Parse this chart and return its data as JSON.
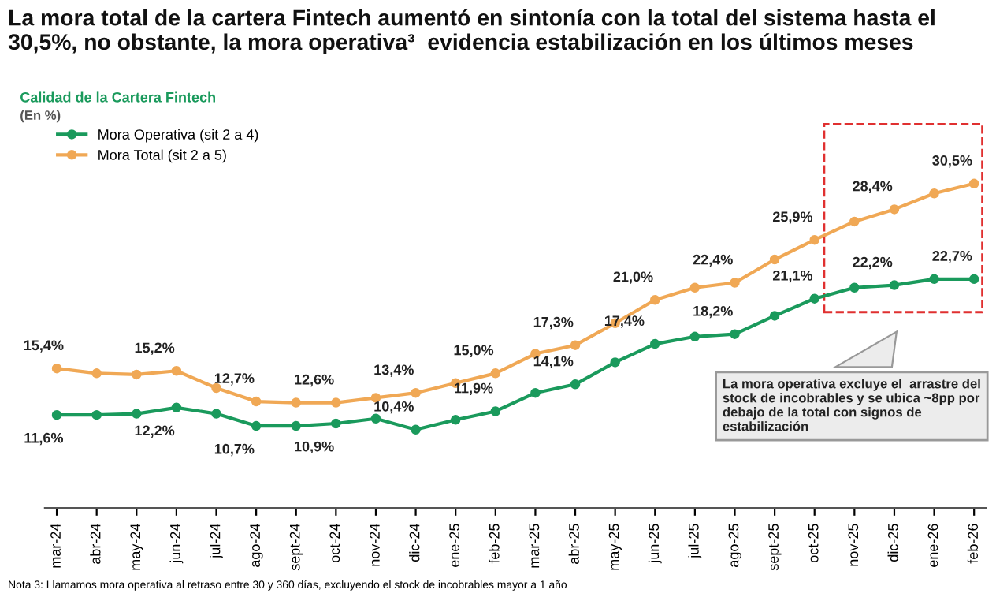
{
  "chart_data": {
    "type": "line",
    "title": "La mora total de la cartera Fintech aumentó en sintonía con la total del sistema hasta el\n30,5%, no obstante, la mora operativa³  evidencia estabilización en los últimos meses",
    "subtitle": "Calidad de la Cartera Fintech",
    "ylabel": "(En %)",
    "categories": [
      "mar-24",
      "abr-24",
      "may-24",
      "jun-24",
      "jul-24",
      "ago-24",
      "sept-24",
      "oct-24",
      "nov-24",
      "dic-24",
      "ene-25",
      "feb-25",
      "mar-25",
      "abr-25",
      "may-25",
      "jun-25",
      "jul-25",
      "ago-25",
      "sept-25",
      "oct-25",
      "nov-25",
      "dic-25",
      "ene-26",
      "feb-26"
    ],
    "series": [
      {
        "name": "Mora Operativa (sit 2 a 4)",
        "color": "#1a9a5c",
        "values": [
          11.6,
          11.6,
          11.7,
          12.2,
          11.7,
          10.7,
          10.7,
          10.9,
          11.3,
          10.4,
          11.2,
          11.9,
          13.4,
          14.1,
          15.9,
          17.4,
          18.0,
          18.2,
          19.7,
          21.1,
          22.0,
          22.2,
          22.7,
          22.7
        ],
        "value_labels": [
          "11,6%",
          null,
          null,
          "12,2%",
          null,
          "10,7%",
          null,
          "10,9%",
          null,
          "10,4%",
          null,
          "11,9%",
          null,
          "14,1%",
          null,
          "17,4%",
          null,
          "18,2%",
          null,
          "21,1%",
          null,
          "22,2%",
          null,
          "22,7%"
        ]
      },
      {
        "name": "Mora Total (sit 2 a 5)",
        "color": "#f0a855",
        "values": [
          15.4,
          15.0,
          14.9,
          15.2,
          13.8,
          12.7,
          12.6,
          12.6,
          13.0,
          13.4,
          14.2,
          15.0,
          16.6,
          17.3,
          19.1,
          21.0,
          22.0,
          22.4,
          24.3,
          25.9,
          27.4,
          28.4,
          29.7,
          30.5
        ],
        "value_labels": [
          "15,4%",
          null,
          null,
          "15,2%",
          null,
          "12,7%",
          null,
          "12,6%",
          null,
          "13,4%",
          null,
          "15,0%",
          null,
          "17,3%",
          null,
          "21,0%",
          null,
          "22,4%",
          null,
          "25,9%",
          null,
          "28,4%",
          null,
          "30,5%"
        ]
      }
    ],
    "tick_labels": "x",
    "marker": "circle",
    "line_style": "solid",
    "legend": "top left",
    "grid": false,
    "annotations": [
      "La mora operativa excluye el  arrastre del\nstock de incobrables y se ubica ~8pp por\ndebajo de la total con signos de\nestabilización",
      "Nota 3: Llamamos mora operativa al retraso entre 30 y 360 días, excluyendo el stock de incobrables mayor a 1 año"
    ]
  }
}
